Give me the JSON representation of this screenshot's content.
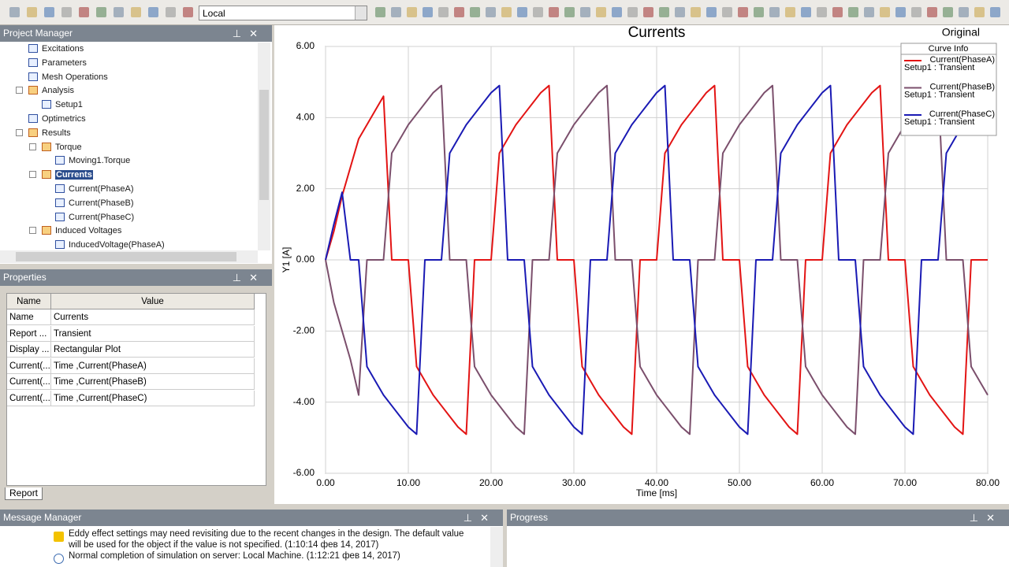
{
  "toolbar": {
    "dropdown": "Local"
  },
  "project_manager": {
    "title": "Project Manager",
    "tree": [
      {
        "label": "Excitations"
      },
      {
        "label": "Parameters"
      },
      {
        "label": "Mesh Operations"
      },
      {
        "label": "Analysis",
        "children": [
          {
            "label": "Setup1"
          }
        ]
      },
      {
        "label": "Optimetrics"
      },
      {
        "label": "Results",
        "children": [
          {
            "label": "Torque",
            "children": [
              {
                "label": "Moving1.Torque"
              }
            ]
          },
          {
            "label": "Currents",
            "selected": true,
            "children": [
              {
                "label": "Current(PhaseA)"
              },
              {
                "label": "Current(PhaseB)"
              },
              {
                "label": "Current(PhaseC)"
              }
            ]
          },
          {
            "label": "Induced Voltages",
            "children": [
              {
                "label": "InducedVoltage(PhaseA)"
              }
            ]
          }
        ]
      }
    ]
  },
  "properties": {
    "title": "Properties",
    "columns": [
      "Name",
      "Value"
    ],
    "rows": [
      [
        "Name",
        "Currents"
      ],
      [
        "Report ...",
        "Transient"
      ],
      [
        "Display ...",
        "Rectangular Plot"
      ],
      [
        "Current(...",
        "Time ,Current(PhaseA)"
      ],
      [
        "Current(...",
        "Time ,Current(PhaseB)"
      ],
      [
        "Current(...",
        "Time ,Current(PhaseC)"
      ]
    ],
    "tab": "Report"
  },
  "message_manager": {
    "title": "Message Manager",
    "messages": [
      {
        "level": "warning",
        "text": "Eddy effect settings may need revisiting due to the recent changes in the design.  The default value will be used for the object if the value is not specified.  (1:10:14  фев 14, 2017)"
      },
      {
        "level": "info",
        "text": "Normal completion of simulation on server: Local Machine. (1:12:21  фев 14, 2017)"
      }
    ]
  },
  "progress": {
    "title": "Progress"
  },
  "chart_data": {
    "type": "line",
    "title": "Currents",
    "view": "Original",
    "xlabel": "Time [ms]",
    "ylabel": "Y1 [A]",
    "legend_title": "Curve Info",
    "grid": true,
    "xlim": [
      0,
      80
    ],
    "ylim": [
      -6,
      6
    ],
    "xticks": [
      {
        "value": 0,
        "label": "0.00"
      },
      {
        "value": 10,
        "label": "10.00"
      },
      {
        "value": 20,
        "label": "20.00"
      },
      {
        "value": 30,
        "label": "30.00"
      },
      {
        "value": 40,
        "label": "40.00"
      },
      {
        "value": 50,
        "label": "50.00"
      },
      {
        "value": 60,
        "label": "60.00"
      },
      {
        "value": 70,
        "label": "70.00"
      },
      {
        "value": 80,
        "label": "80.00"
      }
    ],
    "yticks": [
      {
        "value": -6,
        "label": "-6.00"
      },
      {
        "value": -4,
        "label": "-4.00"
      },
      {
        "value": -2,
        "label": "-2.00"
      },
      {
        "value": 0,
        "label": "0.00"
      },
      {
        "value": 2,
        "label": "2.00"
      },
      {
        "value": 4,
        "label": "4.00"
      },
      {
        "value": 6,
        "label": "6.00"
      }
    ],
    "x": [
      0,
      1,
      2,
      3,
      4,
      5,
      6,
      7,
      8,
      9,
      10,
      11,
      12,
      13,
      14,
      15,
      16,
      17,
      18,
      19,
      20,
      21,
      22,
      23,
      24,
      25,
      26,
      27,
      28,
      29,
      30,
      31,
      32,
      33,
      34,
      35,
      36,
      37,
      38,
      39,
      40,
      41,
      42,
      43,
      44,
      45,
      46,
      47,
      48,
      49,
      50,
      51,
      52,
      53,
      54,
      55,
      56,
      57,
      58,
      59,
      60,
      61,
      62,
      63,
      64,
      65,
      66,
      67,
      68,
      69,
      70,
      71,
      72,
      73,
      74,
      75,
      76,
      77,
      78,
      79,
      80
    ],
    "series": [
      {
        "name": "Current(PhaseA)",
        "setup": "Setup1 : Transient",
        "color": "#e31414",
        "values": [
          0,
          0.8,
          1.8,
          2.6,
          3.4,
          3.8,
          4.2,
          4.6,
          0,
          0,
          0,
          -3.0,
          -3.4,
          -3.8,
          -4.1,
          -4.4,
          -4.7,
          -4.9,
          0,
          0,
          0,
          3.0,
          3.4,
          3.8,
          4.1,
          4.4,
          4.7,
          4.9,
          0,
          0,
          0,
          -3.0,
          -3.4,
          -3.8,
          -4.1,
          -4.4,
          -4.7,
          -4.9,
          0,
          0,
          0,
          3.0,
          3.4,
          3.8,
          4.1,
          4.4,
          4.7,
          4.9,
          0,
          0,
          0,
          -3.0,
          -3.4,
          -3.8,
          -4.1,
          -4.4,
          -4.7,
          -4.9,
          0,
          0,
          0,
          3.0,
          3.4,
          3.8,
          4.1,
          4.4,
          4.7,
          4.9,
          0,
          0,
          0,
          -3.0,
          -3.4,
          -3.8,
          -4.1,
          -4.4,
          -4.7,
          -4.9,
          0,
          0,
          0
        ]
      },
      {
        "name": "Current(PhaseB)",
        "setup": "Setup1 : Transient",
        "color": "#7b4f6c",
        "values": [
          0,
          -1.2,
          -2.0,
          -2.8,
          -3.8,
          0,
          0,
          0,
          3.0,
          3.4,
          3.8,
          4.1,
          4.4,
          4.7,
          4.9,
          0,
          0,
          0,
          -3.0,
          -3.4,
          -3.8,
          -4.1,
          -4.4,
          -4.7,
          -4.9,
          0,
          0,
          0,
          3.0,
          3.4,
          3.8,
          4.1,
          4.4,
          4.7,
          4.9,
          0,
          0,
          0,
          -3.0,
          -3.4,
          -3.8,
          -4.1,
          -4.4,
          -4.7,
          -4.9,
          0,
          0,
          0,
          3.0,
          3.4,
          3.8,
          4.1,
          4.4,
          4.7,
          4.9,
          0,
          0,
          0,
          -3.0,
          -3.4,
          -3.8,
          -4.1,
          -4.4,
          -4.7,
          -4.9,
          0,
          0,
          0,
          3.0,
          3.4,
          3.8,
          4.1,
          4.4,
          4.7,
          4.9,
          0,
          0,
          0,
          -3.0,
          -3.4,
          -3.8
        ]
      },
      {
        "name": "Current(PhaseC)",
        "setup": "Setup1 : Transient",
        "color": "#1a1ab4",
        "values": [
          0,
          1.0,
          1.9,
          0,
          0,
          -3.0,
          -3.4,
          -3.8,
          -4.1,
          -4.4,
          -4.7,
          -4.9,
          0,
          0,
          0,
          3.0,
          3.4,
          3.8,
          4.1,
          4.4,
          4.7,
          4.9,
          0,
          0,
          0,
          -3.0,
          -3.4,
          -3.8,
          -4.1,
          -4.4,
          -4.7,
          -4.9,
          0,
          0,
          0,
          3.0,
          3.4,
          3.8,
          4.1,
          4.4,
          4.7,
          4.9,
          0,
          0,
          0,
          -3.0,
          -3.4,
          -3.8,
          -4.1,
          -4.4,
          -4.7,
          -4.9,
          0,
          0,
          0,
          3.0,
          3.4,
          3.8,
          4.1,
          4.4,
          4.7,
          4.9,
          0,
          0,
          0,
          -3.0,
          -3.4,
          -3.8,
          -4.1,
          -4.4,
          -4.7,
          -4.9,
          0,
          0,
          0,
          3.0,
          3.4,
          3.8,
          4.1,
          4.4,
          4.7
        ]
      }
    ]
  }
}
